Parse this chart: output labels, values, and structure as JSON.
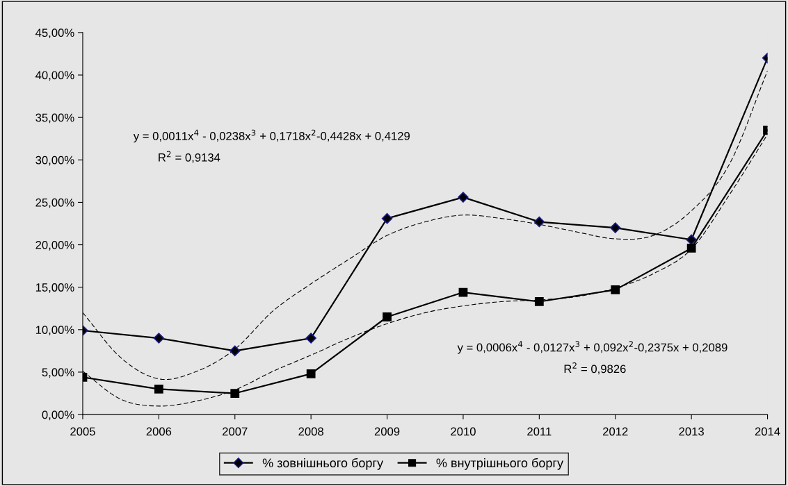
{
  "chart_data": {
    "type": "line",
    "x": [
      2005,
      2006,
      2007,
      2008,
      2009,
      2010,
      2011,
      2012,
      2013,
      2014
    ],
    "xlim": [
      2005,
      2014
    ],
    "xticks": [
      2005,
      2006,
      2007,
      2008,
      2009,
      2010,
      2011,
      2012,
      2013,
      2014
    ],
    "ylim": [
      0,
      45
    ],
    "yticks": [
      {
        "value": 0,
        "label": "0,00%"
      },
      {
        "value": 5,
        "label": "5,00%"
      },
      {
        "value": 10,
        "label": "10,00%"
      },
      {
        "value": 15,
        "label": "15,00%"
      },
      {
        "value": 20,
        "label": "20,00%"
      },
      {
        "value": 25,
        "label": "25,00%"
      },
      {
        "value": 30,
        "label": "30,00%"
      },
      {
        "value": 35,
        "label": "35,00%"
      },
      {
        "value": 40,
        "label": "40,00%"
      },
      {
        "value": 45,
        "label": "45,00%"
      }
    ],
    "grid": false,
    "legend": "bottom",
    "series": [
      {
        "name": "% зовнішнього боргу",
        "color": "#000000",
        "marker": "diamond",
        "line_style": "solid",
        "values": [
          9.9,
          9.0,
          7.5,
          9.0,
          23.1,
          25.6,
          22.7,
          22.0,
          20.6,
          42.0
        ]
      },
      {
        "name": "% внутрішнього боргу",
        "color": "#000000",
        "marker": "square",
        "line_style": "solid",
        "values": [
          4.4,
          3.0,
          2.5,
          4.8,
          11.5,
          14.4,
          13.3,
          14.7,
          19.6,
          33.5
        ]
      },
      {
        "color": "#000000",
        "marker": "none",
        "line_style": "dashed",
        "x": [
          2005,
          2005.5,
          2006,
          2006.5,
          2007,
          2007.5,
          2008,
          2008.5,
          2009,
          2009.5,
          2010,
          2010.5,
          2011,
          2011.5,
          2012,
          2012.5,
          2013,
          2013.5,
          2014
        ],
        "values": [
          12.0,
          6.7,
          4.2,
          5.1,
          7.7,
          12.2,
          15.4,
          18.3,
          21.1,
          22.7,
          23.5,
          23.1,
          22.4,
          21.5,
          20.7,
          21.1,
          24.0,
          29.5,
          40.5
        ]
      },
      {
        "color": "#000000",
        "marker": "none",
        "line_style": "dashed",
        "x": [
          2005,
          2005.5,
          2006,
          2006.5,
          2007,
          2007.5,
          2008,
          2008.5,
          2009,
          2009.5,
          2010,
          2010.5,
          2011,
          2011.5,
          2012,
          2012.5,
          2013,
          2013.5,
          2014
        ],
        "values": [
          5.1,
          1.8,
          1.0,
          1.6,
          2.9,
          5.1,
          7.0,
          9.0,
          10.7,
          12.0,
          12.8,
          13.3,
          13.5,
          13.9,
          14.9,
          16.6,
          19.5,
          25.9,
          33.0
        ]
      }
    ],
    "annotations": [
      "y = 0,0011x$^{4}$ - 0,0238x$^{3}$ + 0,1718x$^{2}$-0,4428x + 0,4129",
      "R$^{2}$ = 0,9134",
      "y = 0,0006x$^{4}$ - 0,0127x$^{3}$ + 0,092x$^{2}$-0,2375x + 0,2089",
      "R$^{2}$ = 0,9826"
    ]
  }
}
